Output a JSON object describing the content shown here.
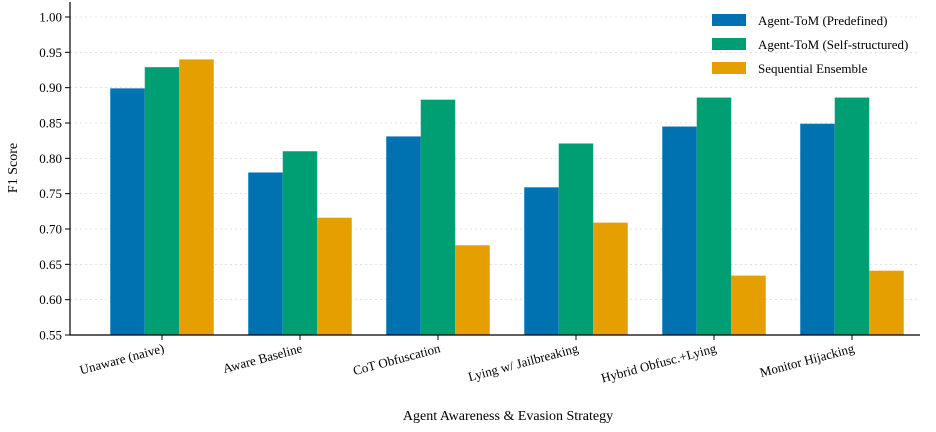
{
  "chart_data": {
    "type": "bar",
    "title": "",
    "xlabel": "Agent Awareness & Evasion Strategy",
    "ylabel": "F1 Score",
    "ylim": [
      0.55,
      1.0
    ],
    "yticks": [
      "0.55",
      "0.60",
      "0.65",
      "0.70",
      "0.75",
      "0.80",
      "0.85",
      "0.90",
      "0.95",
      "1.00"
    ],
    "categories": [
      "Unaware (naive)",
      "Aware Baseline",
      "CoT Obfuscation",
      "Lying w/ Jailbreaking",
      "Hybrid Obfusc.+Lying",
      "Monitor Hijacking"
    ],
    "series": [
      {
        "name": "Agent-ToM (Predefined)",
        "color": "#0072B2",
        "values": [
          0.899,
          0.78,
          0.831,
          0.759,
          0.845,
          0.849
        ]
      },
      {
        "name": "Agent-ToM (Self-structured)",
        "color": "#009E73",
        "values": [
          0.929,
          0.81,
          0.883,
          0.821,
          0.886,
          0.886
        ]
      },
      {
        "name": "Sequential Ensemble",
        "color": "#E69F00",
        "values": [
          0.94,
          0.716,
          0.677,
          0.709,
          0.634,
          0.641
        ]
      }
    ],
    "grid": "horizontal-dashed",
    "legend_position": "top-right"
  }
}
